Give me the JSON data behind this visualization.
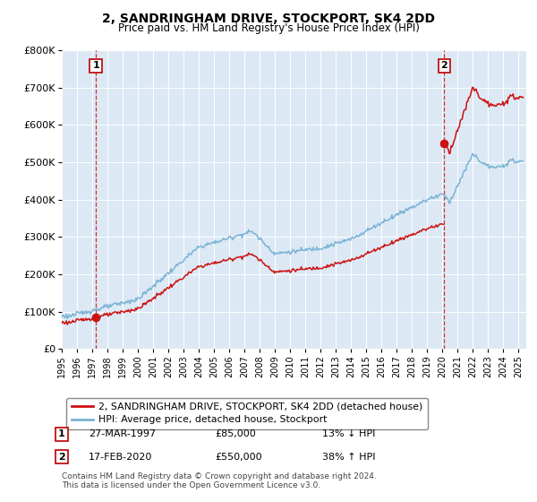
{
  "title": "2, SANDRINGHAM DRIVE, STOCKPORT, SK4 2DD",
  "subtitle": "Price paid vs. HM Land Registry's House Price Index (HPI)",
  "ylabel_ticks": [
    "£0",
    "£100K",
    "£200K",
    "£300K",
    "£400K",
    "£500K",
    "£600K",
    "£700K",
    "£800K"
  ],
  "ytick_values": [
    0,
    100000,
    200000,
    300000,
    400000,
    500000,
    600000,
    700000,
    800000
  ],
  "ylim": [
    0,
    800000
  ],
  "xlim_start": 1995.0,
  "xlim_end": 2025.5,
  "hpi_color": "#7ab3d4",
  "price_color": "#cc1111",
  "vline_color": "#cc1111",
  "bg_color": "#dce9f5",
  "transaction1_year": 1997.24,
  "transaction1_price": 85000,
  "transaction2_year": 2020.12,
  "transaction2_price": 550000,
  "legend_label1": "2, SANDRINGHAM DRIVE, STOCKPORT, SK4 2DD (detached house)",
  "legend_label2": "HPI: Average price, detached house, Stockport",
  "note1_date": "27-MAR-1997",
  "note1_price": "£85,000",
  "note1_hpi": "13% ↓ HPI",
  "note2_date": "17-FEB-2020",
  "note2_price": "£550,000",
  "note2_hpi": "38% ↑ HPI",
  "footer": "Contains HM Land Registry data © Crown copyright and database right 2024.\nThis data is licensed under the Open Government Licence v3.0.",
  "xtick_years": [
    1995,
    1996,
    1997,
    1998,
    1999,
    2000,
    2001,
    2002,
    2003,
    2004,
    2005,
    2006,
    2007,
    2008,
    2009,
    2010,
    2011,
    2012,
    2013,
    2014,
    2015,
    2016,
    2017,
    2018,
    2019,
    2020,
    2021,
    2022,
    2023,
    2024,
    2025
  ]
}
